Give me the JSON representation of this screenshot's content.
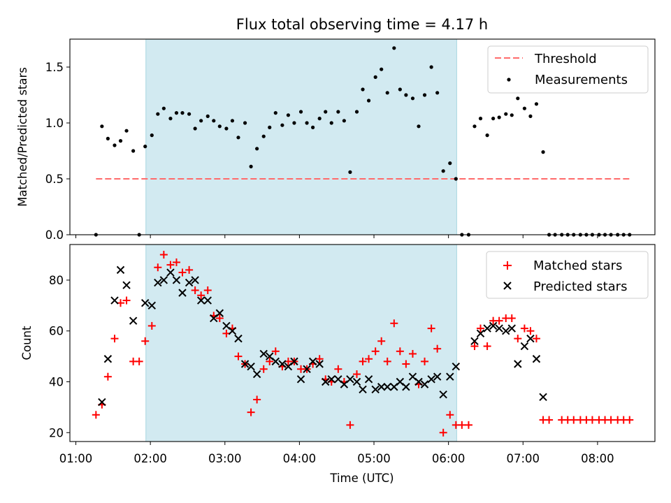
{
  "chart_data": {
    "title": "Flux total observing time = 4.17 h",
    "xlabel": "Time (UTC)",
    "x_ticks": [
      "01:00",
      "02:00",
      "03:00",
      "04:00",
      "05:00",
      "06:00",
      "07:00",
      "08:00"
    ],
    "x_range_hours": [
      0.92,
      8.77
    ],
    "shaded_interval_hours": [
      1.94,
      6.11
    ],
    "shade_color": "#add8e6",
    "panels": [
      {
        "type": "scatter",
        "ylabel": "Matched/Predicted stars",
        "ylim": [
          0,
          1.75
        ],
        "yticks": [
          "0.0",
          "0.5",
          "1.0",
          "1.5"
        ],
        "legend": [
          "Threshold",
          "Measurements"
        ],
        "legend_position": "top-right",
        "threshold": {
          "value": 0.5,
          "x_range": [
            1.27,
            8.43
          ],
          "color": "#ff6b6b"
        },
        "series": [
          {
            "name": "Measurements",
            "color": "#000000",
            "points": [
              [
                1.27,
                0.0
              ],
              [
                1.35,
                0.97
              ],
              [
                1.43,
                0.86
              ],
              [
                1.52,
                0.8
              ],
              [
                1.6,
                0.84
              ],
              [
                1.68,
                0.93
              ],
              [
                1.77,
                0.75
              ],
              [
                1.85,
                0.0
              ],
              [
                1.93,
                0.79
              ],
              [
                2.02,
                0.89
              ],
              [
                2.1,
                1.08
              ],
              [
                2.18,
                1.13
              ],
              [
                2.27,
                1.04
              ],
              [
                2.35,
                1.09
              ],
              [
                2.43,
                1.09
              ],
              [
                2.52,
                1.08
              ],
              [
                2.6,
                0.95
              ],
              [
                2.68,
                1.02
              ],
              [
                2.77,
                1.06
              ],
              [
                2.85,
                1.02
              ],
              [
                2.93,
                0.97
              ],
              [
                3.02,
                0.95
              ],
              [
                3.1,
                1.02
              ],
              [
                3.18,
                0.87
              ],
              [
                3.27,
                1.0
              ],
              [
                3.35,
                0.61
              ],
              [
                3.43,
                0.77
              ],
              [
                3.52,
                0.88
              ],
              [
                3.6,
                0.96
              ],
              [
                3.68,
                1.09
              ],
              [
                3.77,
                0.98
              ],
              [
                3.85,
                1.07
              ],
              [
                3.93,
                1.0
              ],
              [
                4.02,
                1.1
              ],
              [
                4.1,
                1.0
              ],
              [
                4.18,
                0.96
              ],
              [
                4.27,
                1.04
              ],
              [
                4.35,
                1.1
              ],
              [
                4.43,
                1.0
              ],
              [
                4.52,
                1.1
              ],
              [
                4.6,
                1.02
              ],
              [
                4.68,
                0.56
              ],
              [
                4.77,
                1.1
              ],
              [
                4.85,
                1.3
              ],
              [
                4.93,
                1.2
              ],
              [
                5.02,
                1.41
              ],
              [
                5.1,
                1.48
              ],
              [
                5.18,
                1.27
              ],
              [
                5.27,
                1.67
              ],
              [
                5.35,
                1.3
              ],
              [
                5.43,
                1.25
              ],
              [
                5.52,
                1.22
              ],
              [
                5.6,
                0.97
              ],
              [
                5.68,
                1.25
              ],
              [
                5.77,
                1.5
              ],
              [
                5.85,
                1.27
              ],
              [
                5.93,
                0.57
              ],
              [
                6.02,
                0.64
              ],
              [
                6.1,
                0.5
              ],
              [
                6.18,
                0.0
              ],
              [
                6.27,
                0.0
              ],
              [
                6.35,
                0.97
              ],
              [
                6.43,
                1.04
              ],
              [
                6.52,
                0.89
              ],
              [
                6.6,
                1.04
              ],
              [
                6.68,
                1.05
              ],
              [
                6.77,
                1.08
              ],
              [
                6.85,
                1.07
              ],
              [
                6.93,
                1.22
              ],
              [
                7.02,
                1.13
              ],
              [
                7.1,
                1.06
              ],
              [
                7.18,
                1.17
              ],
              [
                7.27,
                0.74
              ],
              [
                7.35,
                0.0
              ],
              [
                7.43,
                0.0
              ],
              [
                7.52,
                0.0
              ],
              [
                7.6,
                0.0
              ],
              [
                7.68,
                0.0
              ],
              [
                7.77,
                0.0
              ],
              [
                7.85,
                0.0
              ],
              [
                7.93,
                0.0
              ],
              [
                8.02,
                0.0
              ],
              [
                8.1,
                0.0
              ],
              [
                8.18,
                0.0
              ],
              [
                8.27,
                0.0
              ],
              [
                8.35,
                0.0
              ],
              [
                8.43,
                0.0
              ]
            ]
          }
        ]
      },
      {
        "type": "scatter",
        "ylabel": "Count",
        "ylim": [
          16.5,
          94
        ],
        "yticks": [
          "20",
          "40",
          "60",
          "80"
        ],
        "legend": [
          "Matched stars",
          "Predicted stars"
        ],
        "legend_position": "top-right",
        "series": [
          {
            "name": "Matched stars",
            "color": "#ff0000",
            "marker": "plus",
            "points": [
              [
                1.27,
                27
              ],
              [
                1.35,
                31
              ],
              [
                1.43,
                42
              ],
              [
                1.52,
                57
              ],
              [
                1.6,
                71
              ],
              [
                1.68,
                72
              ],
              [
                1.77,
                48
              ],
              [
                1.85,
                48
              ],
              [
                1.93,
                56
              ],
              [
                2.02,
                62
              ],
              [
                2.1,
                85
              ],
              [
                2.18,
                90
              ],
              [
                2.27,
                86
              ],
              [
                2.35,
                87
              ],
              [
                2.43,
                83
              ],
              [
                2.52,
                84
              ],
              [
                2.6,
                76
              ],
              [
                2.68,
                74
              ],
              [
                2.77,
                76
              ],
              [
                2.85,
                66
              ],
              [
                2.93,
                65
              ],
              [
                3.02,
                59
              ],
              [
                3.1,
                61
              ],
              [
                3.18,
                50
              ],
              [
                3.27,
                47
              ],
              [
                3.35,
                28
              ],
              [
                3.43,
                33
              ],
              [
                3.52,
                45
              ],
              [
                3.6,
                48
              ],
              [
                3.68,
                52
              ],
              [
                3.77,
                46
              ],
              [
                3.85,
                48
              ],
              [
                3.93,
                48
              ],
              [
                4.02,
                45
              ],
              [
                4.1,
                45
              ],
              [
                4.18,
                47
              ],
              [
                4.27,
                49
              ],
              [
                4.35,
                41
              ],
              [
                4.43,
                40
              ],
              [
                4.52,
                45
              ],
              [
                4.6,
                40
              ],
              [
                4.68,
                23
              ],
              [
                4.77,
                43
              ],
              [
                4.85,
                48
              ],
              [
                4.93,
                49
              ],
              [
                5.02,
                52
              ],
              [
                5.1,
                56
              ],
              [
                5.18,
                48
              ],
              [
                5.27,
                63
              ],
              [
                5.35,
                52
              ],
              [
                5.43,
                47
              ],
              [
                5.52,
                51
              ],
              [
                5.6,
                39
              ],
              [
                5.68,
                48
              ],
              [
                5.77,
                61
              ],
              [
                5.85,
                53
              ],
              [
                5.93,
                20
              ],
              [
                6.02,
                27
              ],
              [
                6.1,
                23
              ],
              [
                6.18,
                23
              ],
              [
                6.27,
                23
              ],
              [
                6.35,
                54
              ],
              [
                6.43,
                61
              ],
              [
                6.52,
                54
              ],
              [
                6.6,
                64
              ],
              [
                6.68,
                64
              ],
              [
                6.77,
                65
              ],
              [
                6.85,
                65
              ],
              [
                6.93,
                57
              ],
              [
                7.02,
                61
              ],
              [
                7.1,
                60
              ],
              [
                7.18,
                57
              ],
              [
                7.27,
                25
              ],
              [
                7.35,
                25
              ],
              [
                7.52,
                25
              ],
              [
                7.6,
                25
              ],
              [
                7.68,
                25
              ],
              [
                7.77,
                25
              ],
              [
                7.85,
                25
              ],
              [
                7.93,
                25
              ],
              [
                8.02,
                25
              ],
              [
                8.1,
                25
              ],
              [
                8.18,
                25
              ],
              [
                8.27,
                25
              ],
              [
                8.35,
                25
              ],
              [
                8.43,
                25
              ]
            ]
          },
          {
            "name": "Predicted stars",
            "color": "#000000",
            "marker": "x",
            "points": [
              [
                1.35,
                32
              ],
              [
                1.43,
                49
              ],
              [
                1.52,
                72
              ],
              [
                1.6,
                84
              ],
              [
                1.68,
                78
              ],
              [
                1.77,
                64
              ],
              [
                1.93,
                71
              ],
              [
                2.02,
                70
              ],
              [
                2.1,
                79
              ],
              [
                2.18,
                80
              ],
              [
                2.27,
                83
              ],
              [
                2.35,
                80
              ],
              [
                2.43,
                75
              ],
              [
                2.52,
                79
              ],
              [
                2.6,
                80
              ],
              [
                2.68,
                72
              ],
              [
                2.77,
                72
              ],
              [
                2.85,
                65
              ],
              [
                2.93,
                67
              ],
              [
                3.02,
                62
              ],
              [
                3.1,
                60
              ],
              [
                3.18,
                57
              ],
              [
                3.27,
                47
              ],
              [
                3.35,
                46
              ],
              [
                3.43,
                43
              ],
              [
                3.52,
                51
              ],
              [
                3.6,
                50
              ],
              [
                3.68,
                48
              ],
              [
                3.77,
                47
              ],
              [
                3.85,
                46
              ],
              [
                3.93,
                48
              ],
              [
                4.02,
                41
              ],
              [
                4.1,
                45
              ],
              [
                4.18,
                48
              ],
              [
                4.27,
                47
              ],
              [
                4.35,
                40
              ],
              [
                4.43,
                41
              ],
              [
                4.52,
                41
              ],
              [
                4.6,
                39
              ],
              [
                4.68,
                41
              ],
              [
                4.77,
                40
              ],
              [
                4.85,
                37
              ],
              [
                4.93,
                41
              ],
              [
                5.02,
                37
              ],
              [
                5.1,
                38
              ],
              [
                5.18,
                38
              ],
              [
                5.27,
                38
              ],
              [
                5.35,
                40
              ],
              [
                5.43,
                38
              ],
              [
                5.52,
                42
              ],
              [
                5.6,
                40
              ],
              [
                5.68,
                39
              ],
              [
                5.77,
                41
              ],
              [
                5.85,
                42
              ],
              [
                5.93,
                35
              ],
              [
                6.02,
                42
              ],
              [
                6.1,
                46
              ],
              [
                6.35,
                56
              ],
              [
                6.43,
                59
              ],
              [
                6.52,
                61
              ],
              [
                6.6,
                62
              ],
              [
                6.68,
                61
              ],
              [
                6.77,
                60
              ],
              [
                6.85,
                61
              ],
              [
                6.93,
                47
              ],
              [
                7.02,
                54
              ],
              [
                7.1,
                57
              ],
              [
                7.18,
                49
              ],
              [
                7.27,
                34
              ]
            ]
          }
        ]
      }
    ]
  }
}
